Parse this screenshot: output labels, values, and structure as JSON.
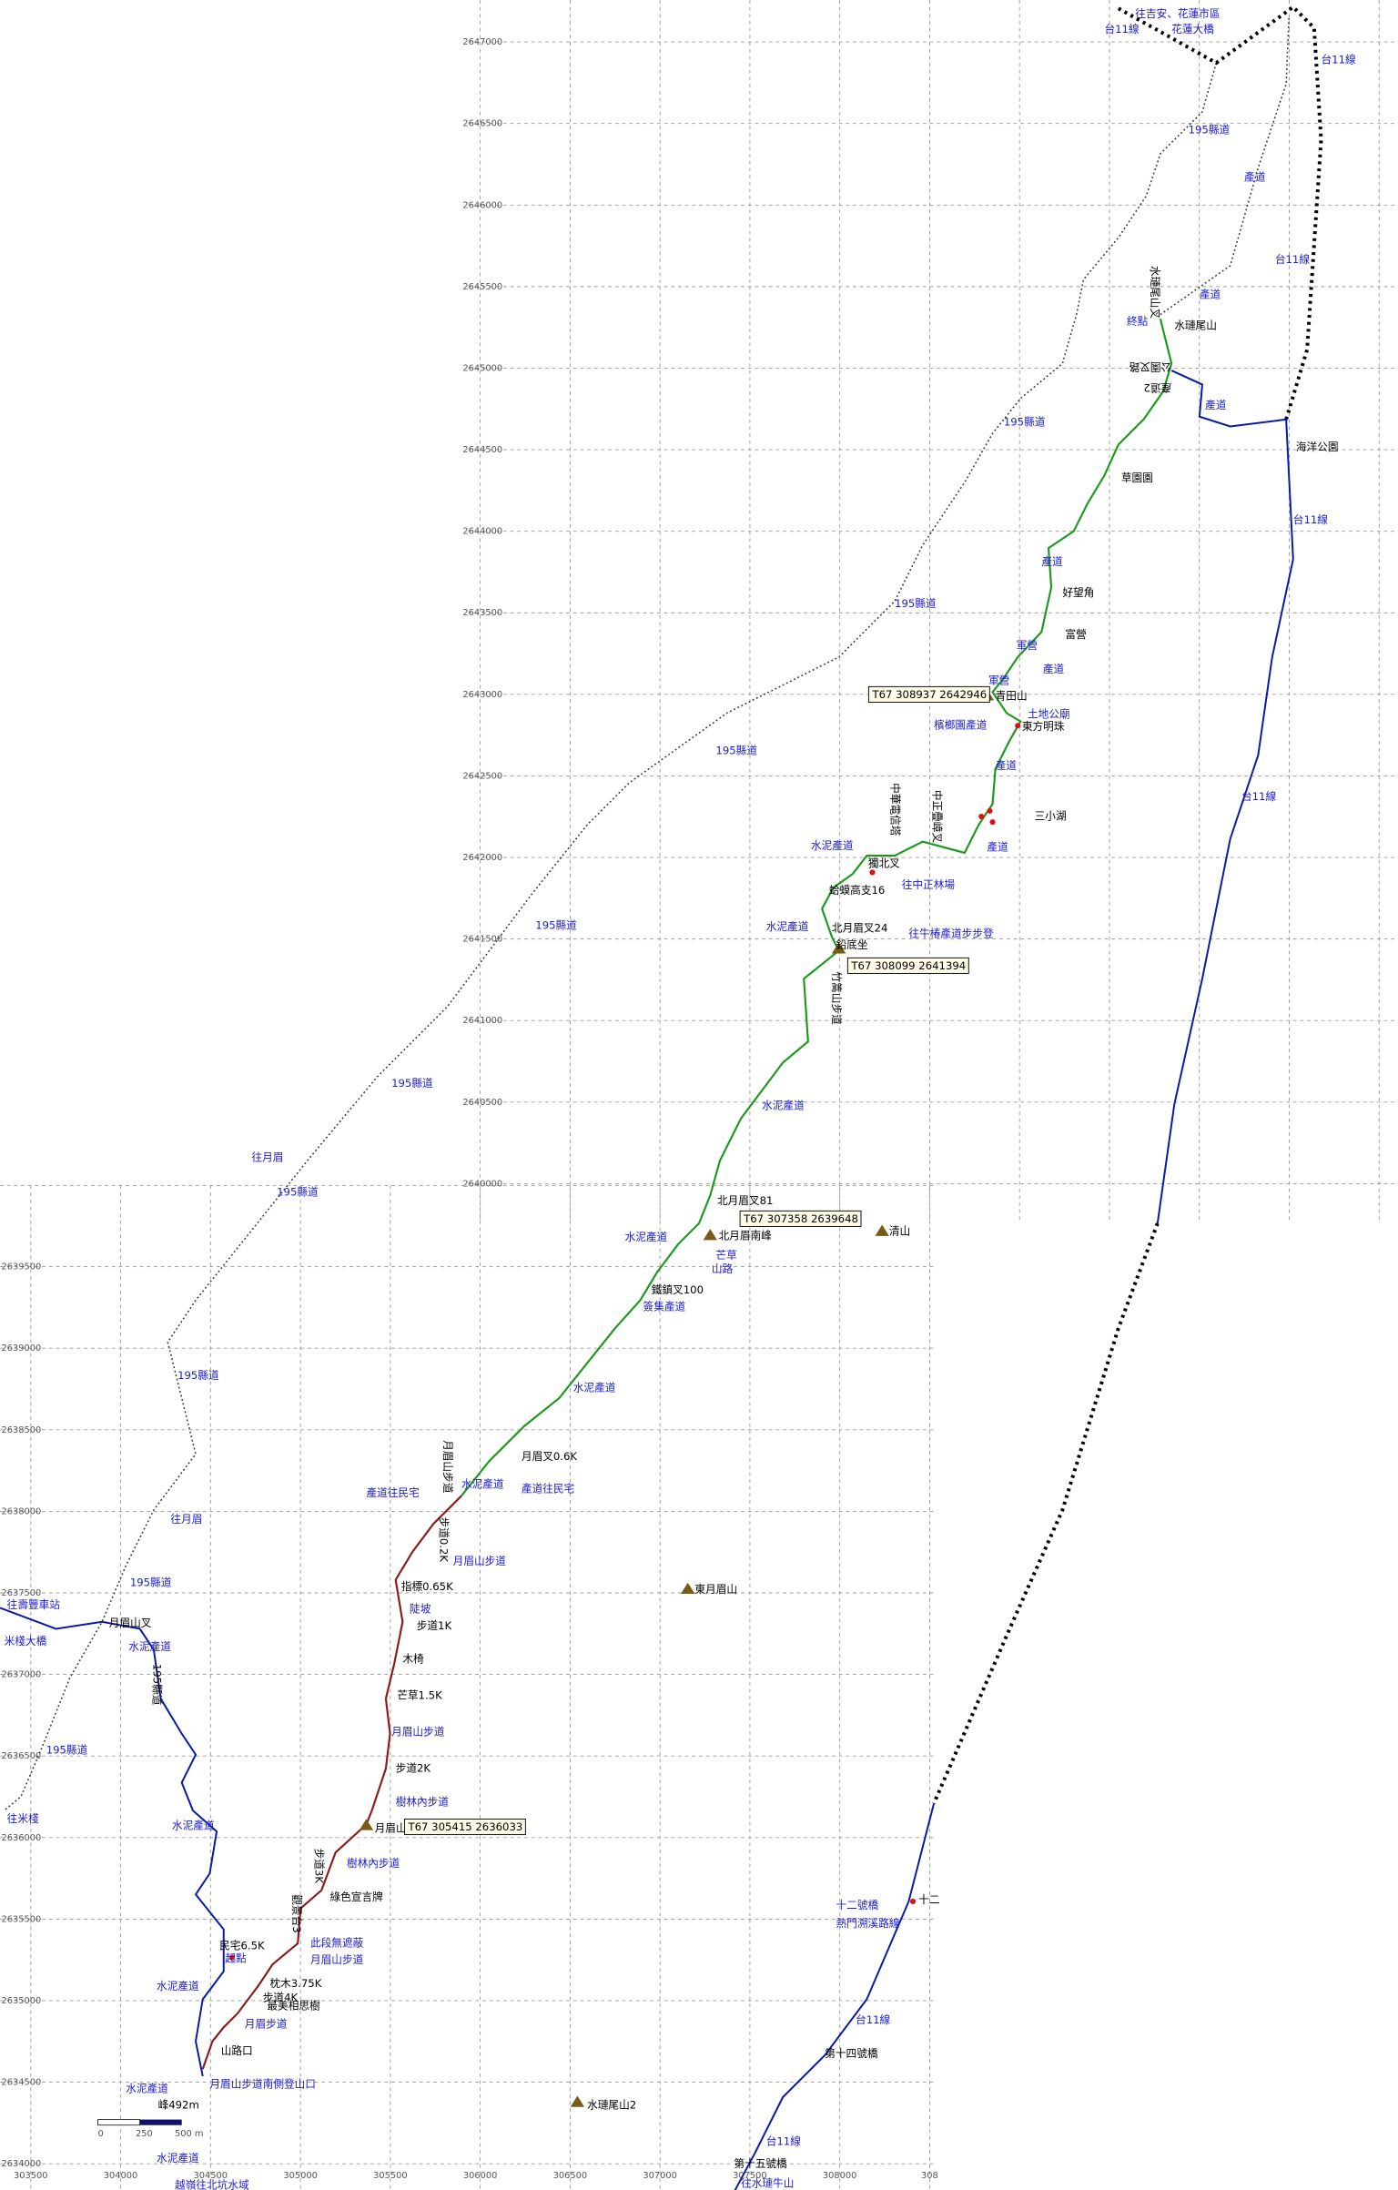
{
  "labels": [
    "往吉安、花蓮市區",
    "花蓮大橋",
    "台11線",
    "台11線",
    "195縣道",
    "產道",
    "台11線",
    "產道",
    "水璉尾山叉",
    "終點",
    "水璉尾山",
    "公園叉路",
    "產道2",
    "產道",
    "195縣道",
    "海洋公園",
    "草園園",
    "台11線",
    "產道",
    "好望角",
    "195縣道",
    "富營",
    "軍營",
    "產道",
    "軍營",
    "T67  308937  2642946",
    "青田山",
    "土地公廟",
    "東方明珠",
    "檳榔園產道",
    "195縣道",
    "產道",
    "台11線",
    "三小湖",
    "中華電信塔",
    "中正疊嶂叉",
    "往中正林場",
    "水泥產道",
    "產道",
    "獨北叉",
    "蛤蟆高支16",
    "195縣道",
    "水泥產道",
    "北月眉叉24",
    "往牛椿產道步步登",
    "鉛底坐",
    "T67  308099  2641394",
    "竹篙山步道",
    "195縣道",
    "水泥產道",
    "往月眉",
    "195縣道",
    "北月眉叉81",
    "T67  307358  2639648",
    "北月眉南峰",
    "芒草",
    "山路",
    "水泥產道",
    "清山",
    "鐵鎮叉100",
    "簽集產道",
    "195縣道",
    "水泥產道",
    "月眉山步道",
    "月眉叉0.6K",
    "產道往民宅",
    "水泥產道",
    "產道往民宅",
    "步道0.2K",
    "月眉山步道",
    "往月眉",
    "195縣道",
    "指標0.65K",
    "東月眉山",
    "往壽豐車站",
    "陡坡",
    "月眉山叉",
    "步道1K",
    "米棧大橋",
    "水泥產道",
    "195縣道",
    "木椅",
    "芒草1.5K",
    "月眉山步道",
    "195縣道",
    "步道2K",
    "樹林內步道",
    "往米棧",
    "月眉山",
    "T67  305415  2636033",
    "水泥產道",
    "步道3K",
    "樹林內步道",
    "綠色宣言牌",
    "十二號橋",
    "十二",
    "熱門溯溪路線",
    "觀景台3",
    "民宅6.5K",
    "此段無遮蔽",
    "起點",
    "月眉山步道",
    "枕木3.75K",
    "水泥產道",
    "步道4K",
    "最美相思樹",
    "台11線",
    "月眉步道",
    "山路口",
    "第十四號橋",
    "水泥產道",
    "月眉山步道南側登山口",
    "峰492m",
    "水璉尾山2",
    "台11線",
    "第十五號橋",
    "往水璉牛山",
    "越嶺往北坑水域",
    "水泥產道"
  ],
  "scale_bar": [
    "0",
    "250",
    "500 m"
  ],
  "grid": {
    "upper_northings": [
      2647000,
      2646500,
      2646000,
      2645500,
      2645000,
      2644500,
      2644000,
      2643500,
      2643000,
      2642500,
      2642000,
      2641500,
      2641000,
      2640500,
      2640000
    ],
    "lower_northings": [
      2639500,
      2639000,
      2638500,
      2638000,
      2637500,
      2637000,
      2636500,
      2636000,
      2635500,
      2635000,
      2634500,
      2634000
    ],
    "eastings": [
      303500,
      304000,
      304500,
      305000,
      305500,
      306000,
      306500,
      307000,
      307500,
      308000,
      308
    ]
  }
}
